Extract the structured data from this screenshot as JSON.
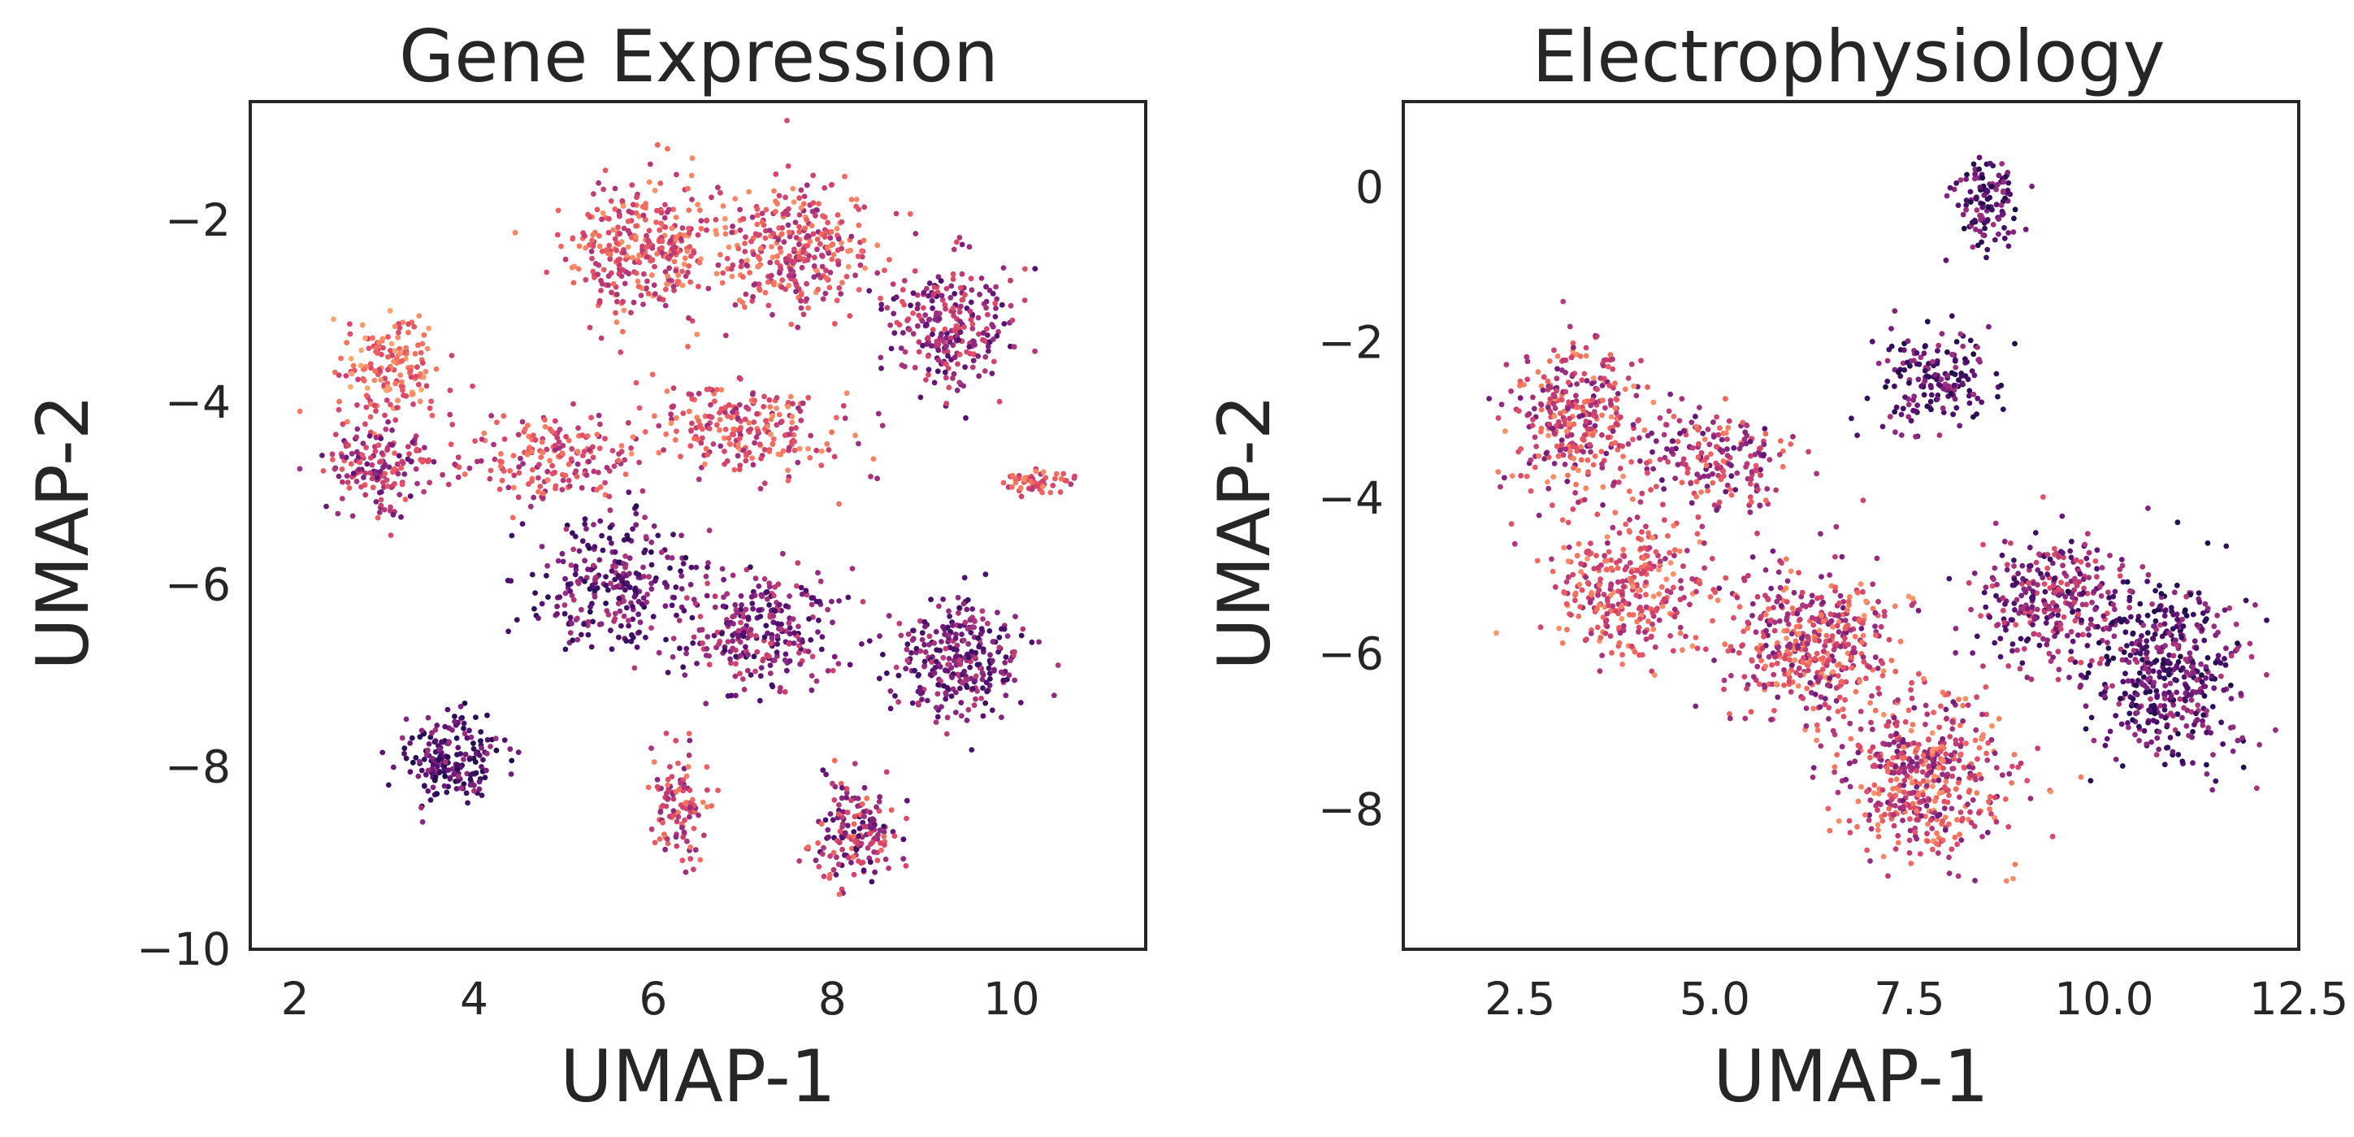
{
  "colormap": {
    "name": "magma",
    "stops": [
      "#120d31",
      "#2c105c",
      "#5b0f74",
      "#8c2981",
      "#b73779",
      "#de4968",
      "#f7705c",
      "#fe9f6d",
      "#fcd17f"
    ]
  },
  "chart_data": [
    {
      "type": "scatter",
      "title": "Gene Expression",
      "xlabel": "UMAP-1",
      "ylabel": "UMAP-2",
      "xlim": [
        1.5,
        11.5
      ],
      "ylim": [
        -10,
        -0.7
      ],
      "xticks": [
        2,
        4,
        6,
        8,
        10
      ],
      "xtick_labels": [
        "2",
        "4",
        "6",
        "8",
        "10"
      ],
      "yticks": [
        -2,
        -4,
        -6,
        -8,
        -10
      ],
      "ytick_labels": [
        "−2",
        "−4",
        "−6",
        "−8",
        "−10"
      ],
      "grid": false,
      "legend": "none",
      "color_encoding": "magma colormap (purple to orange), no colorbar shown",
      "clusters": [
        {
          "center": [
            5.9,
            -2.3
          ],
          "spread": [
            0.75,
            0.7
          ],
          "count": 320,
          "color_range": [
            0.45,
            0.85
          ]
        },
        {
          "center": [
            7.6,
            -2.3
          ],
          "spread": [
            0.8,
            0.65
          ],
          "count": 320,
          "color_range": [
            0.4,
            0.85
          ]
        },
        {
          "center": [
            9.3,
            -3.2
          ],
          "spread": [
            0.6,
            0.65
          ],
          "count": 260,
          "color_range": [
            0.2,
            0.65
          ]
        },
        {
          "center": [
            3.1,
            -3.6
          ],
          "spread": [
            0.55,
            0.55
          ],
          "count": 160,
          "color_range": [
            0.55,
            0.9
          ]
        },
        {
          "center": [
            2.9,
            -4.7
          ],
          "spread": [
            0.55,
            0.45
          ],
          "count": 170,
          "color_range": [
            0.25,
            0.7
          ]
        },
        {
          "center": [
            4.8,
            -4.6
          ],
          "spread": [
            0.9,
            0.45
          ],
          "count": 180,
          "color_range": [
            0.4,
            0.8
          ]
        },
        {
          "center": [
            7.0,
            -4.3
          ],
          "spread": [
            1.0,
            0.5
          ],
          "count": 240,
          "color_range": [
            0.4,
            0.85
          ]
        },
        {
          "center": [
            10.3,
            -4.9
          ],
          "spread": [
            0.35,
            0.13
          ],
          "count": 55,
          "color_range": [
            0.5,
            0.85
          ]
        },
        {
          "center": [
            5.5,
            -6.0
          ],
          "spread": [
            0.8,
            0.65
          ],
          "count": 260,
          "color_range": [
            0.1,
            0.5
          ]
        },
        {
          "center": [
            7.2,
            -6.5
          ],
          "spread": [
            0.85,
            0.6
          ],
          "count": 280,
          "color_range": [
            0.15,
            0.6
          ]
        },
        {
          "center": [
            9.4,
            -6.8
          ],
          "spread": [
            0.7,
            0.55
          ],
          "count": 300,
          "color_range": [
            0.15,
            0.55
          ]
        },
        {
          "center": [
            3.7,
            -7.9
          ],
          "spread": [
            0.55,
            0.45
          ],
          "count": 200,
          "color_range": [
            0.05,
            0.45
          ]
        },
        {
          "center": [
            6.3,
            -8.4
          ],
          "spread": [
            0.3,
            0.55
          ],
          "count": 110,
          "color_range": [
            0.35,
            0.8
          ]
        },
        {
          "center": [
            8.3,
            -8.7
          ],
          "spread": [
            0.45,
            0.5
          ],
          "count": 170,
          "color_range": [
            0.15,
            0.75
          ]
        }
      ]
    },
    {
      "type": "scatter",
      "title": "Electrophysiology",
      "xlabel": "UMAP-1",
      "ylabel": "UMAP-2",
      "xlim": [
        1.0,
        12.5
      ],
      "ylim": [
        -9.8,
        1.1
      ],
      "xticks": [
        2.5,
        5.0,
        7.5,
        10.0,
        12.5
      ],
      "xtick_labels": [
        "2.5",
        "5.0",
        "7.5",
        "10.0",
        "12.5"
      ],
      "yticks": [
        0,
        -2,
        -4,
        -6,
        -8
      ],
      "ytick_labels": [
        "0",
        "−2",
        "−4",
        "−6",
        "−8"
      ],
      "grid": false,
      "legend": "none",
      "color_encoding": "magma colormap (purple to orange), no colorbar shown",
      "clusters": [
        {
          "center": [
            8.5,
            -0.2
          ],
          "spread": [
            0.35,
            0.55
          ],
          "count": 120,
          "color_range": [
            0.05,
            0.45
          ]
        },
        {
          "center": [
            7.8,
            -2.5
          ],
          "spread": [
            0.7,
            0.6
          ],
          "count": 170,
          "color_range": [
            0.05,
            0.45
          ]
        },
        {
          "center": [
            3.2,
            -3.0
          ],
          "spread": [
            0.75,
            0.9
          ],
          "count": 340,
          "color_range": [
            0.3,
            0.85
          ]
        },
        {
          "center": [
            5.0,
            -3.5
          ],
          "spread": [
            0.9,
            0.6
          ],
          "count": 200,
          "color_range": [
            0.25,
            0.8
          ]
        },
        {
          "center": [
            3.9,
            -5.2
          ],
          "spread": [
            0.9,
            0.8
          ],
          "count": 320,
          "color_range": [
            0.4,
            0.85
          ]
        },
        {
          "center": [
            6.2,
            -5.9
          ],
          "spread": [
            1.0,
            0.9
          ],
          "count": 450,
          "color_range": [
            0.3,
            0.85
          ]
        },
        {
          "center": [
            7.7,
            -7.6
          ],
          "spread": [
            1.0,
            0.9
          ],
          "count": 500,
          "color_range": [
            0.3,
            0.85
          ]
        },
        {
          "center": [
            9.3,
            -5.3
          ],
          "spread": [
            0.8,
            0.8
          ],
          "count": 300,
          "color_range": [
            0.15,
            0.65
          ]
        },
        {
          "center": [
            10.8,
            -6.2
          ],
          "spread": [
            0.8,
            1.1
          ],
          "count": 460,
          "color_range": [
            0.05,
            0.5
          ]
        }
      ]
    }
  ]
}
